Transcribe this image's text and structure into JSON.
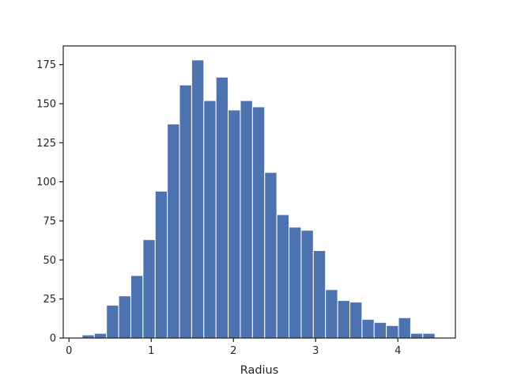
{
  "chart_data": {
    "type": "bar",
    "subtype": "histogram",
    "title": "",
    "xlabel": "Radius",
    "ylabel": "",
    "xlim": [
      -0.07,
      4.7
    ],
    "ylim": [
      0,
      187
    ],
    "xticks": [
      0,
      1,
      2,
      3,
      4
    ],
    "yticks": [
      0,
      25,
      50,
      75,
      100,
      125,
      150,
      175
    ],
    "grid": false,
    "legend": "none",
    "bar_color": "#4c72b0",
    "bin_width": 0.148,
    "bins": [
      {
        "x0": 0.16,
        "x1": 0.308,
        "count": 2
      },
      {
        "x0": 0.308,
        "x1": 0.456,
        "count": 3
      },
      {
        "x0": 0.456,
        "x1": 0.604,
        "count": 21
      },
      {
        "x0": 0.604,
        "x1": 0.752,
        "count": 27
      },
      {
        "x0": 0.752,
        "x1": 0.9,
        "count": 40
      },
      {
        "x0": 0.9,
        "x1": 1.048,
        "count": 63
      },
      {
        "x0": 1.048,
        "x1": 1.196,
        "count": 94
      },
      {
        "x0": 1.196,
        "x1": 1.344,
        "count": 137
      },
      {
        "x0": 1.344,
        "x1": 1.492,
        "count": 162
      },
      {
        "x0": 1.492,
        "x1": 1.64,
        "count": 178
      },
      {
        "x0": 1.64,
        "x1": 1.788,
        "count": 152
      },
      {
        "x0": 1.788,
        "x1": 1.936,
        "count": 167
      },
      {
        "x0": 1.936,
        "x1": 2.084,
        "count": 146
      },
      {
        "x0": 2.084,
        "x1": 2.232,
        "count": 152
      },
      {
        "x0": 2.232,
        "x1": 2.38,
        "count": 148
      },
      {
        "x0": 2.38,
        "x1": 2.528,
        "count": 106
      },
      {
        "x0": 2.528,
        "x1": 2.676,
        "count": 79
      },
      {
        "x0": 2.676,
        "x1": 2.824,
        "count": 71
      },
      {
        "x0": 2.824,
        "x1": 2.972,
        "count": 69
      },
      {
        "x0": 2.972,
        "x1": 3.12,
        "count": 56
      },
      {
        "x0": 3.12,
        "x1": 3.268,
        "count": 31
      },
      {
        "x0": 3.268,
        "x1": 3.416,
        "count": 24
      },
      {
        "x0": 3.416,
        "x1": 3.564,
        "count": 23
      },
      {
        "x0": 3.564,
        "x1": 3.712,
        "count": 12
      },
      {
        "x0": 3.712,
        "x1": 3.86,
        "count": 10
      },
      {
        "x0": 3.86,
        "x1": 4.008,
        "count": 8
      },
      {
        "x0": 4.008,
        "x1": 4.156,
        "count": 13
      },
      {
        "x0": 4.156,
        "x1": 4.304,
        "count": 3
      },
      {
        "x0": 4.304,
        "x1": 4.452,
        "count": 3
      }
    ]
  }
}
